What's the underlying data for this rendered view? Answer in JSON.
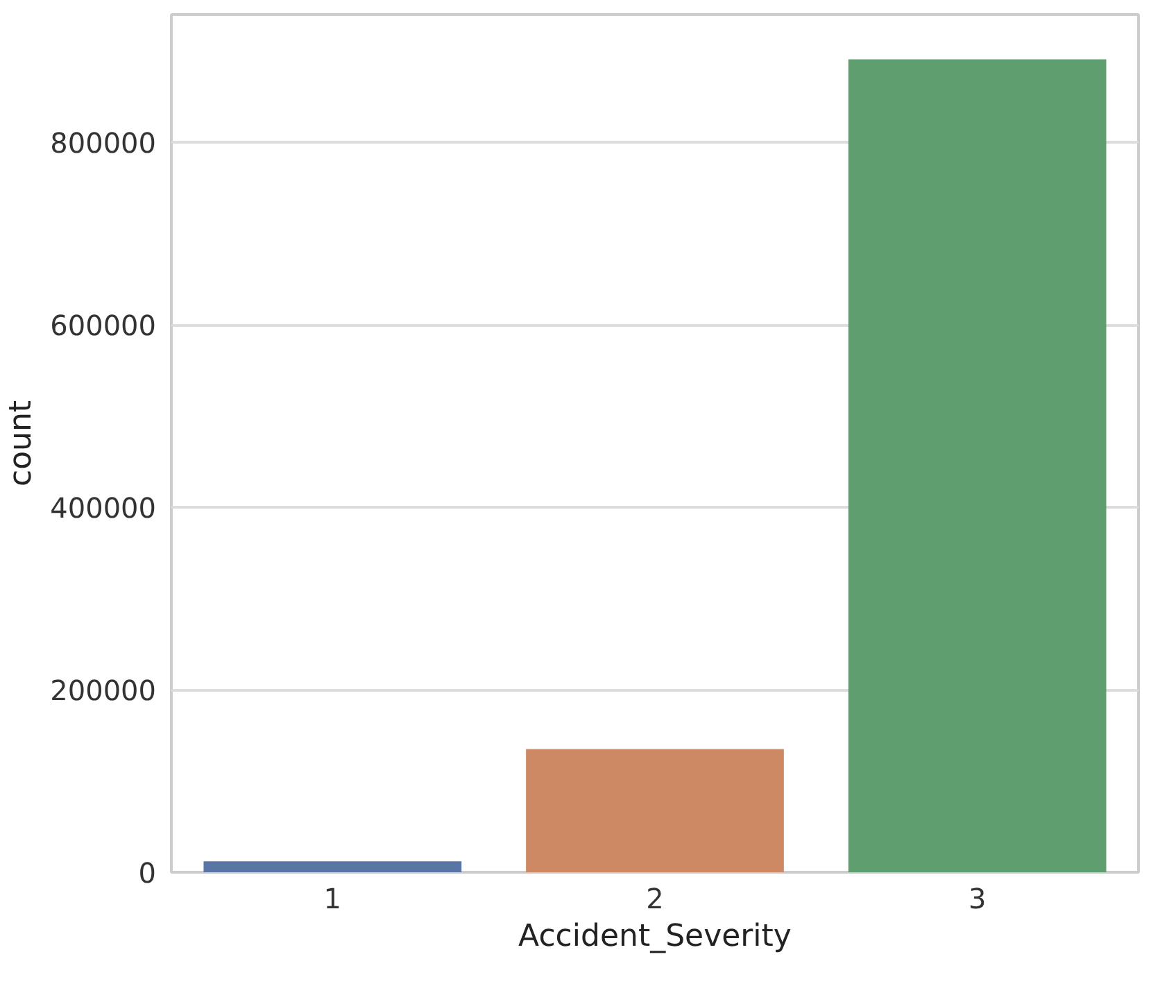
{
  "chart_data": {
    "type": "bar",
    "xlabel": "Accident_Severity",
    "ylabel": "count",
    "categories": [
      "1",
      "2",
      "3"
    ],
    "values": [
      12000,
      135000,
      891000
    ],
    "colors": [
      "#5975a4",
      "#cc8963",
      "#5f9e6e"
    ],
    "ylim": [
      0,
      940000
    ],
    "yticks": [
      0,
      200000,
      400000,
      600000,
      800000
    ],
    "grid": "y"
  }
}
